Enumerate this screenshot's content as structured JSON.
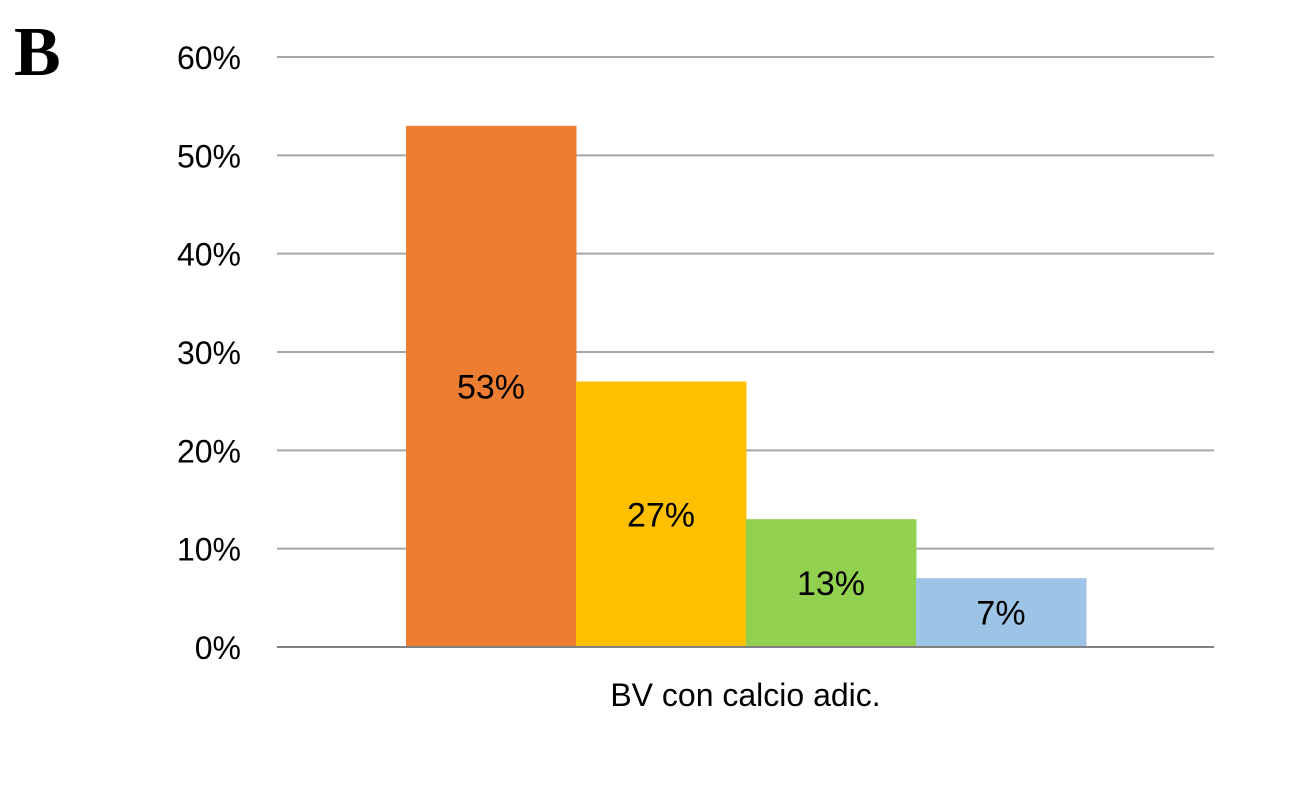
{
  "panel": {
    "letter": "B"
  },
  "chart_data": {
    "type": "bar",
    "categories": [
      "BV con calcio adic."
    ],
    "series": [
      {
        "values": [
          53
        ],
        "label": "53%",
        "color": "#ED7D31"
      },
      {
        "values": [
          27
        ],
        "label": "27%",
        "color": "#FFC000"
      },
      {
        "values": [
          13
        ],
        "label": "13%",
        "color": "#92D050"
      },
      {
        "values": [
          7
        ],
        "label": "7%",
        "color": "#9DC3E6"
      }
    ],
    "y_ticks": [
      "0%",
      "10%",
      "20%",
      "30%",
      "40%",
      "50%",
      "60%"
    ],
    "ylim": [
      0,
      60
    ],
    "ytick_step": 10,
    "grid": true,
    "legend": "none",
    "gridline_color": "#A6A6A6",
    "axis_color": "#808080"
  }
}
